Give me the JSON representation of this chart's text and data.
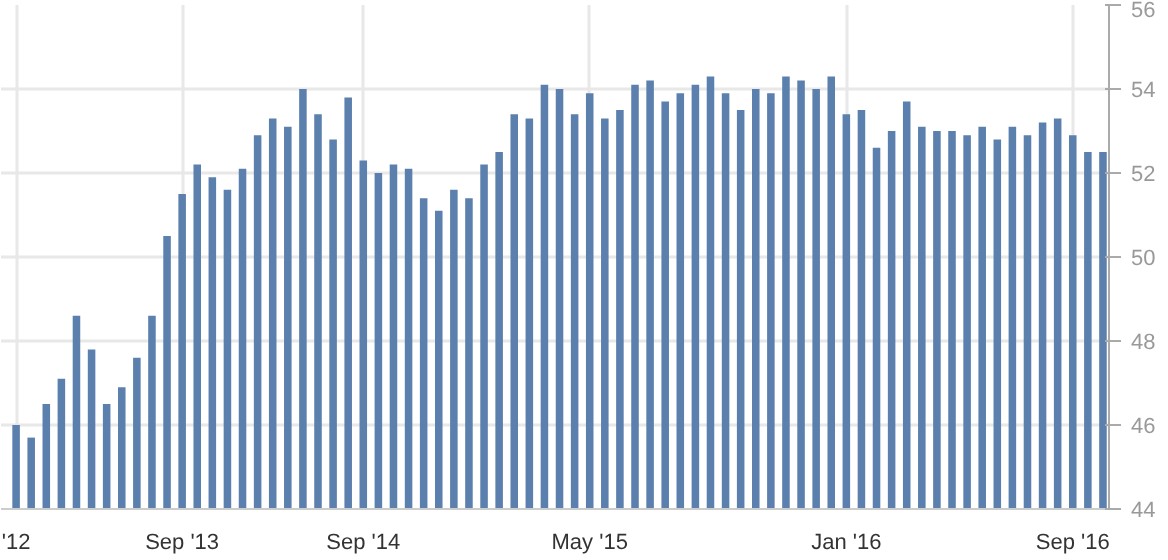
{
  "chart_data": {
    "type": "bar",
    "categories": [
      "'12",
      null,
      null,
      null,
      null,
      null,
      null,
      null,
      null,
      null,
      null,
      "Sep '13",
      null,
      null,
      null,
      null,
      null,
      null,
      null,
      null,
      null,
      null,
      null,
      "Sep '14",
      null,
      null,
      null,
      null,
      null,
      null,
      null,
      null,
      null,
      null,
      null,
      null,
      null,
      null,
      "May '15",
      null,
      null,
      null,
      null,
      null,
      null,
      null,
      null,
      null,
      null,
      null,
      null,
      null,
      null,
      null,
      null,
      "Jan '16",
      null,
      null,
      null,
      null,
      null,
      null,
      null,
      null,
      null,
      null,
      null,
      null,
      null,
      null,
      "Sep '16",
      null,
      null
    ],
    "values": [
      46.0,
      45.7,
      46.5,
      47.1,
      48.6,
      47.8,
      46.5,
      46.9,
      47.6,
      48.6,
      50.5,
      51.5,
      52.2,
      51.9,
      51.6,
      52.1,
      52.9,
      53.3,
      53.1,
      54.0,
      53.4,
      52.8,
      53.8,
      52.3,
      52.0,
      52.2,
      52.1,
      51.4,
      51.1,
      51.6,
      51.4,
      52.2,
      52.5,
      53.4,
      53.3,
      54.1,
      54.0,
      53.4,
      53.9,
      53.3,
      53.5,
      54.1,
      54.2,
      53.7,
      53.9,
      54.1,
      54.3,
      53.9,
      53.5,
      54.0,
      53.9,
      54.3,
      54.2,
      54.0,
      54.3,
      53.4,
      53.5,
      52.6,
      53.0,
      53.7,
      53.1,
      53.0,
      53.0,
      52.9,
      53.1,
      52.8,
      53.1,
      52.9,
      53.2,
      53.3,
      52.9,
      52.5,
      52.5
    ],
    "color": "#5b80ad",
    "ylim": [
      44,
      56
    ],
    "yticks": [
      44,
      46,
      48,
      50,
      52,
      54,
      56
    ],
    "grid": true
  }
}
